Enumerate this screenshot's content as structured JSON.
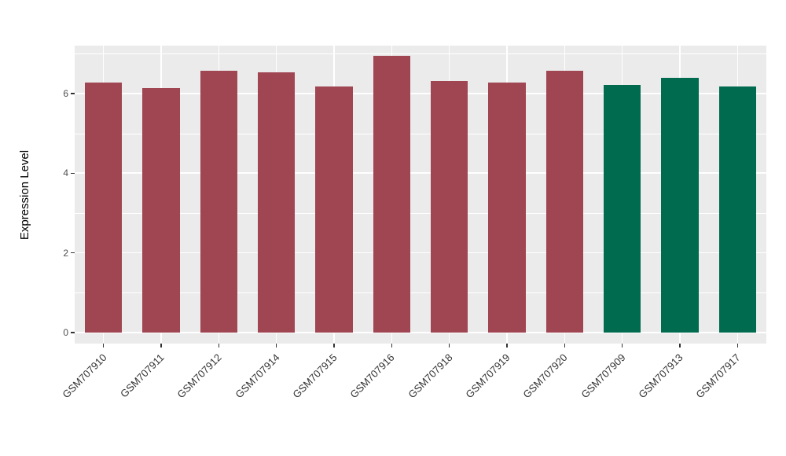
{
  "chart_data": {
    "type": "bar",
    "title": "",
    "xlabel": "",
    "ylabel": "Expression Level",
    "ylim": [
      0,
      7.2
    ],
    "yticks": [
      0,
      2,
      4,
      6
    ],
    "yticks_minor": [
      1,
      3,
      5,
      7
    ],
    "grid": true,
    "legend": false,
    "panel_bg": "#EBEBEB",
    "grid_color": "#FFFFFF",
    "categories": [
      "GSM707910",
      "GSM707911",
      "GSM707912",
      "GSM707914",
      "GSM707915",
      "GSM707916",
      "GSM707918",
      "GSM707919",
      "GSM707920",
      "GSM707909",
      "GSM707913",
      "GSM707917"
    ],
    "values": [
      6.28,
      6.13,
      6.57,
      6.52,
      6.18,
      6.95,
      6.32,
      6.28,
      6.57,
      6.22,
      6.4,
      6.18
    ],
    "bar_colors": [
      "#A04552",
      "#A04552",
      "#A04552",
      "#A04552",
      "#A04552",
      "#A04552",
      "#A04552",
      "#A04552",
      "#A04552",
      "#006B4E",
      "#006B4E",
      "#006B4E"
    ],
    "color_groups": {
      "red_group": "#A04552",
      "green_group": "#006B4E"
    }
  }
}
